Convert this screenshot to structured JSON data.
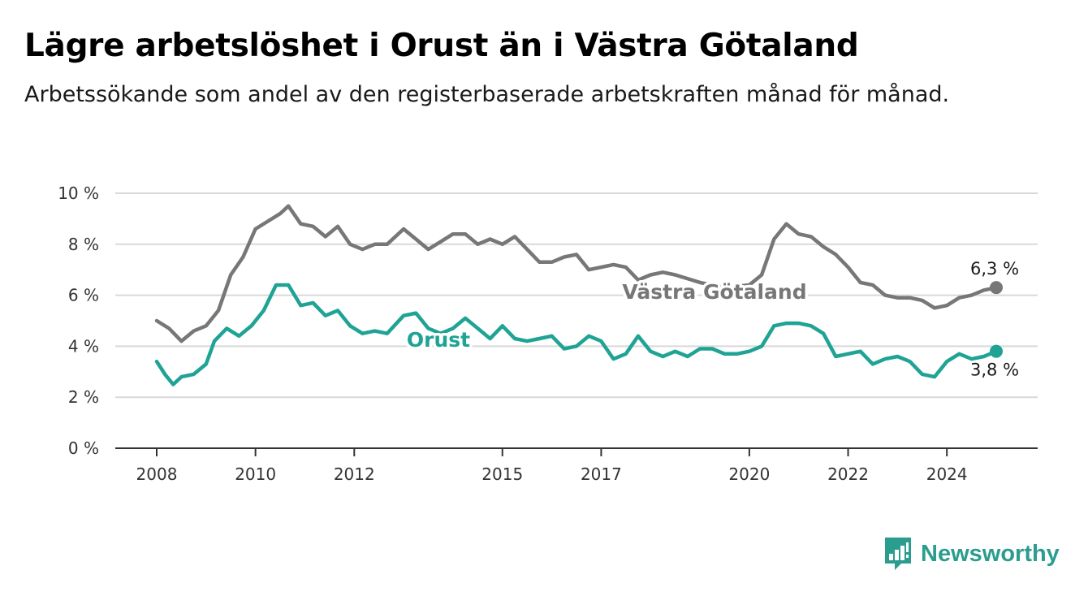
{
  "title": "Lägre arbetslöshet i Orust än i Västra Götaland",
  "subtitle": "Arbetssökande som andel av den registerbaserade arbetskraften månad för månad.",
  "brand": {
    "name": "Newsworthy",
    "logo_icon": "bar-chart-icon",
    "color": "#2a9d8f"
  },
  "chart_data": {
    "type": "line",
    "x_ticks": [
      "2008",
      "2010",
      "2012",
      "2015",
      "2017",
      "2020",
      "2022",
      "2024"
    ],
    "y_ticks": [
      "0 %",
      "2 %",
      "4 %",
      "6 %",
      "8 %",
      "10 %"
    ],
    "ylim": [
      0,
      10
    ],
    "xlim": [
      "2008-01",
      "2025-01"
    ],
    "grid": true,
    "series": [
      {
        "name": "Västra Götaland",
        "color": "#777777",
        "end_label": "6,3 %",
        "points": [
          [
            "2008-01",
            5.0
          ],
          [
            "2008-04",
            4.7
          ],
          [
            "2008-07",
            4.2
          ],
          [
            "2008-10",
            4.6
          ],
          [
            "2009-01",
            4.8
          ],
          [
            "2009-04",
            5.4
          ],
          [
            "2009-07",
            6.8
          ],
          [
            "2009-10",
            7.5
          ],
          [
            "2010-01",
            8.6
          ],
          [
            "2010-04",
            8.9
          ],
          [
            "2010-07",
            9.2
          ],
          [
            "2010-09",
            9.5
          ],
          [
            "2010-12",
            8.8
          ],
          [
            "2011-03",
            8.7
          ],
          [
            "2011-06",
            8.3
          ],
          [
            "2011-09",
            8.7
          ],
          [
            "2011-12",
            8.0
          ],
          [
            "2012-03",
            7.8
          ],
          [
            "2012-06",
            8.0
          ],
          [
            "2012-09",
            8.0
          ],
          [
            "2013-01",
            8.6
          ],
          [
            "2013-04",
            8.2
          ],
          [
            "2013-07",
            7.8
          ],
          [
            "2013-10",
            8.1
          ],
          [
            "2014-01",
            8.4
          ],
          [
            "2014-04",
            8.4
          ],
          [
            "2014-07",
            8.0
          ],
          [
            "2014-10",
            8.2
          ],
          [
            "2015-01",
            8.0
          ],
          [
            "2015-04",
            8.3
          ],
          [
            "2015-07",
            7.8
          ],
          [
            "2015-10",
            7.3
          ],
          [
            "2016-01",
            7.3
          ],
          [
            "2016-04",
            7.5
          ],
          [
            "2016-07",
            7.6
          ],
          [
            "2016-10",
            7.0
          ],
          [
            "2017-01",
            7.1
          ],
          [
            "2017-04",
            7.2
          ],
          [
            "2017-07",
            7.1
          ],
          [
            "2017-10",
            6.6
          ],
          [
            "2018-01",
            6.8
          ],
          [
            "2018-04",
            6.9
          ],
          [
            "2018-07",
            6.8
          ],
          [
            "2019-01",
            6.5
          ],
          [
            "2019-07",
            6.3
          ],
          [
            "2020-01",
            6.4
          ],
          [
            "2020-04",
            6.8
          ],
          [
            "2020-07",
            8.2
          ],
          [
            "2020-10",
            8.8
          ],
          [
            "2021-01",
            8.4
          ],
          [
            "2021-04",
            8.3
          ],
          [
            "2021-07",
            7.9
          ],
          [
            "2021-10",
            7.6
          ],
          [
            "2022-01",
            7.1
          ],
          [
            "2022-04",
            6.5
          ],
          [
            "2022-07",
            6.4
          ],
          [
            "2022-10",
            6.0
          ],
          [
            "2023-01",
            5.9
          ],
          [
            "2023-04",
            5.9
          ],
          [
            "2023-07",
            5.8
          ],
          [
            "2023-10",
            5.5
          ],
          [
            "2024-01",
            5.6
          ],
          [
            "2024-04",
            5.9
          ],
          [
            "2024-07",
            6.0
          ],
          [
            "2024-10",
            6.2
          ],
          [
            "2025-01",
            6.3
          ]
        ]
      },
      {
        "name": "Orust",
        "color": "#1fa395",
        "end_label": "3,8 %",
        "points": [
          [
            "2008-01",
            3.4
          ],
          [
            "2008-03",
            2.9
          ],
          [
            "2008-05",
            2.5
          ],
          [
            "2008-07",
            2.8
          ],
          [
            "2008-10",
            2.9
          ],
          [
            "2009-01",
            3.3
          ],
          [
            "2009-03",
            4.2
          ],
          [
            "2009-06",
            4.7
          ],
          [
            "2009-09",
            4.4
          ],
          [
            "2009-12",
            4.8
          ],
          [
            "2010-03",
            5.4
          ],
          [
            "2010-06",
            6.4
          ],
          [
            "2010-09",
            6.4
          ],
          [
            "2010-12",
            5.6
          ],
          [
            "2011-03",
            5.7
          ],
          [
            "2011-06",
            5.2
          ],
          [
            "2011-09",
            5.4
          ],
          [
            "2011-12",
            4.8
          ],
          [
            "2012-03",
            4.5
          ],
          [
            "2012-06",
            4.6
          ],
          [
            "2012-09",
            4.5
          ],
          [
            "2013-01",
            5.2
          ],
          [
            "2013-04",
            5.3
          ],
          [
            "2013-07",
            4.7
          ],
          [
            "2013-10",
            4.5
          ],
          [
            "2014-01",
            4.7
          ],
          [
            "2014-04",
            5.1
          ],
          [
            "2014-07",
            4.7
          ],
          [
            "2014-10",
            4.3
          ],
          [
            "2015-01",
            4.8
          ],
          [
            "2015-04",
            4.3
          ],
          [
            "2015-07",
            4.2
          ],
          [
            "2015-10",
            4.3
          ],
          [
            "2016-01",
            4.4
          ],
          [
            "2016-04",
            3.9
          ],
          [
            "2016-07",
            4.0
          ],
          [
            "2016-10",
            4.4
          ],
          [
            "2017-01",
            4.2
          ],
          [
            "2017-04",
            3.5
          ],
          [
            "2017-07",
            3.7
          ],
          [
            "2017-10",
            4.4
          ],
          [
            "2018-01",
            3.8
          ],
          [
            "2018-04",
            3.6
          ],
          [
            "2018-07",
            3.8
          ],
          [
            "2018-10",
            3.6
          ],
          [
            "2019-01",
            3.9
          ],
          [
            "2019-04",
            3.9
          ],
          [
            "2019-07",
            3.7
          ],
          [
            "2019-10",
            3.7
          ],
          [
            "2020-01",
            3.8
          ],
          [
            "2020-04",
            4.0
          ],
          [
            "2020-07",
            4.8
          ],
          [
            "2020-10",
            4.9
          ],
          [
            "2021-01",
            4.9
          ],
          [
            "2021-04",
            4.8
          ],
          [
            "2021-07",
            4.5
          ],
          [
            "2021-10",
            3.6
          ],
          [
            "2022-01",
            3.7
          ],
          [
            "2022-04",
            3.8
          ],
          [
            "2022-07",
            3.3
          ],
          [
            "2022-10",
            3.5
          ],
          [
            "2023-01",
            3.6
          ],
          [
            "2023-04",
            3.4
          ],
          [
            "2023-07",
            2.9
          ],
          [
            "2023-10",
            2.8
          ],
          [
            "2024-01",
            3.4
          ],
          [
            "2024-04",
            3.7
          ],
          [
            "2024-07",
            3.5
          ],
          [
            "2024-10",
            3.6
          ],
          [
            "2025-01",
            3.8
          ]
        ]
      }
    ]
  }
}
